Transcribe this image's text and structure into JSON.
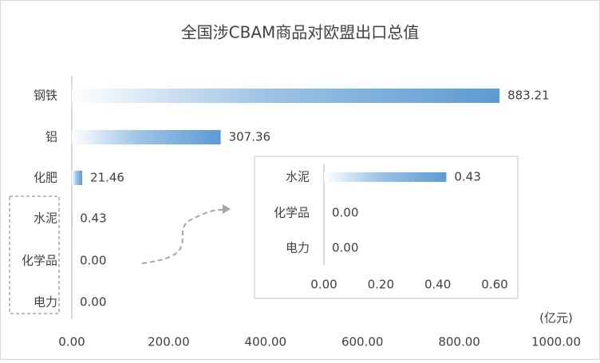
{
  "chart_data": [
    {
      "type": "bar",
      "orientation": "horizontal",
      "title": "全国涉CBAM商品对欧盟出口总值",
      "unit_label": "(亿元)",
      "categories": [
        "钢铁",
        "铝",
        "化肥",
        "水泥",
        "化学品",
        "电力"
      ],
      "values": [
        883.21,
        307.36,
        21.46,
        0.43,
        0,
        0
      ],
      "value_labels": [
        "883.21",
        "307.36",
        "21.46",
        "0.43",
        "0.00",
        "0.00"
      ],
      "color": "#5b9bd5",
      "xlim": [
        0,
        1000
      ],
      "xticks": [
        {
          "value": 0,
          "label": "0.00"
        },
        {
          "value": 200,
          "label": "200.00"
        },
        {
          "value": 400,
          "label": "400.00"
        },
        {
          "value": 600,
          "label": "600.00"
        },
        {
          "value": 800,
          "label": "800.00"
        },
        {
          "value": 1000,
          "label": "1000.00"
        }
      ]
    },
    {
      "type": "bar",
      "orientation": "horizontal",
      "categories": [
        "水泥",
        "化学品",
        "电力"
      ],
      "values": [
        0.43,
        0,
        0
      ],
      "value_labels": [
        "0.43",
        "0.00",
        "0.00"
      ],
      "color": "#5b9bd5",
      "xlim": [
        0,
        0.6
      ],
      "xticks": [
        {
          "value": 0,
          "label": "0.00"
        },
        {
          "value": 0.2,
          "label": "0.20"
        },
        {
          "value": 0.4,
          "label": "0.40"
        },
        {
          "value": 0.6,
          "label": "0.60"
        }
      ]
    }
  ]
}
